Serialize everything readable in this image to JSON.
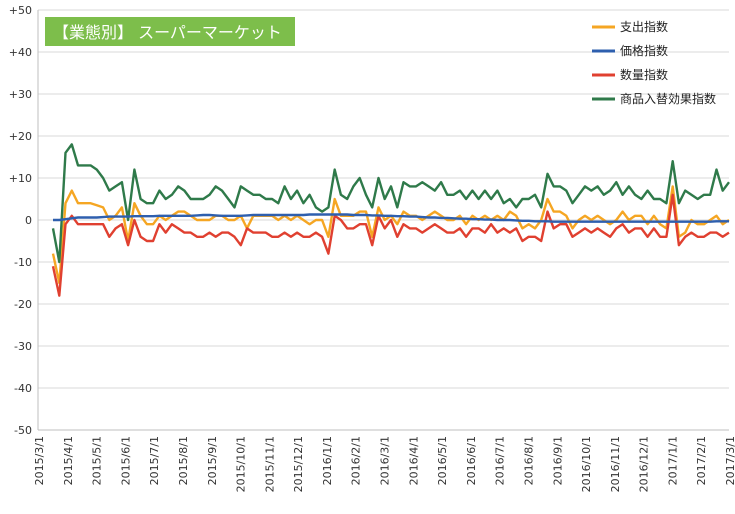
{
  "chart_data": {
    "type": "line",
    "title": "【業態別】 スーパーマーケット",
    "ylim": [
      -50,
      50
    ],
    "y_ticks": [
      "+50",
      "+40",
      "+30",
      "+20",
      "+10",
      "0",
      "-10",
      "-20",
      "-30",
      "-40",
      "-50"
    ],
    "x_tick_labels": [
      "2015/3/1",
      "2015/4/1",
      "2015/5/1",
      "2015/6/1",
      "2015/7/1",
      "2015/8/1",
      "2015/9/1",
      "2015/10/1",
      "2015/11/1",
      "2015/12/1",
      "2016/1/1",
      "2016/2/1",
      "2016/3/1",
      "2016/4/1",
      "2016/5/1",
      "2016/6/1",
      "2016/7/1",
      "2016/8/1",
      "2016/9/1",
      "2016/10/1",
      "2016/11/1",
      "2016/12/1",
      "2017/1/1",
      "2017/2/1",
      "2017/3/1"
    ],
    "x_range_weeks": [
      0,
      108
    ],
    "grid": "horizontal",
    "legend": "top-right",
    "colors": {
      "spend": "#F5A623",
      "price": "#2E5FAE",
      "quantity": "#E04030",
      "mix": "#2F7A4A",
      "title_bg": "#7DBE4B",
      "grid": "#D9D9D9"
    },
    "series": [
      {
        "name": "支出指数",
        "color": "#F5A623",
        "values": [
          -8,
          -15,
          4,
          7,
          4,
          4,
          4,
          3.5,
          3,
          0,
          1,
          3,
          -5,
          4,
          1,
          -1,
          -1,
          1,
          0,
          1,
          2,
          2,
          1,
          0,
          0,
          0,
          1,
          1,
          0,
          0,
          1,
          -2,
          1,
          1,
          1,
          1,
          0,
          1,
          0,
          1,
          0,
          -1,
          0,
          0,
          -4,
          5,
          1,
          1,
          1,
          2,
          2,
          -4,
          3,
          0,
          1,
          -1,
          2,
          1,
          1,
          0,
          1,
          2,
          1,
          0,
          0,
          1,
          -1,
          1,
          0,
          1,
          0,
          1,
          0,
          2,
          1,
          -2,
          -1,
          -2,
          0,
          5,
          2,
          2,
          1,
          -2,
          0,
          1,
          0,
          1,
          0,
          -1,
          0,
          2,
          0,
          1,
          1,
          -1,
          1,
          -1,
          -2,
          8,
          -4,
          -3,
          0,
          -1,
          -1,
          0,
          1,
          -1,
          0
        ]
      },
      {
        "name": "価格指数",
        "color": "#2E5FAE",
        "values": [
          0,
          0,
          0.2,
          0.4,
          0.6,
          0.6,
          0.6,
          0.6,
          0.7,
          0.8,
          0.8,
          0.8,
          0.8,
          0.9,
          0.9,
          0.9,
          0.9,
          1,
          1,
          1,
          1,
          1,
          1,
          1.1,
          1.2,
          1.2,
          1.1,
          1,
          1,
          1,
          1,
          1.1,
          1.2,
          1.2,
          1.2,
          1.2,
          1.2,
          1.2,
          1.2,
          1.2,
          1.2,
          1.3,
          1.3,
          1.3,
          1.3,
          1.3,
          1.3,
          1.3,
          1.2,
          1.2,
          1.2,
          1.1,
          1.1,
          1,
          1,
          0.9,
          0.9,
          0.8,
          0.8,
          0.7,
          0.6,
          0.6,
          0.5,
          0.5,
          0.4,
          0.3,
          0.3,
          0.2,
          0.2,
          0.1,
          0.1,
          0,
          0,
          0,
          -0.1,
          -0.2,
          -0.2,
          -0.3,
          -0.3,
          -0.3,
          -0.4,
          -0.4,
          -0.4,
          -0.4,
          -0.4,
          -0.4,
          -0.4,
          -0.4,
          -0.4,
          -0.4,
          -0.4,
          -0.4,
          -0.4,
          -0.4,
          -0.4,
          -0.4,
          -0.4,
          -0.4,
          -0.4,
          -0.4,
          -0.4,
          -0.4,
          -0.4,
          -0.4,
          -0.4,
          -0.4,
          -0.3,
          -0.3,
          -0.3
        ]
      },
      {
        "name": "数量指数",
        "color": "#E04030",
        "values": [
          -11,
          -18,
          -1,
          1,
          -1,
          -1,
          -1,
          -1,
          -1,
          -4,
          -2,
          -1,
          -6,
          0,
          -4,
          -5,
          -5,
          -1,
          -3,
          -1,
          -2,
          -3,
          -3,
          -4,
          -4,
          -3,
          -4,
          -3,
          -3,
          -4,
          -6,
          -2,
          -3,
          -3,
          -3,
          -4,
          -4,
          -3,
          -4,
          -3,
          -4,
          -4,
          -3,
          -4,
          -8,
          1,
          0,
          -2,
          -2,
          -1,
          -1,
          -6,
          1,
          -2,
          0,
          -4,
          -1,
          -2,
          -2,
          -3,
          -2,
          -1,
          -2,
          -3,
          -3,
          -2,
          -4,
          -2,
          -2,
          -3,
          -1,
          -3,
          -2,
          -3,
          -2,
          -5,
          -4,
          -4,
          -5,
          2,
          -2,
          -1,
          -1,
          -4,
          -3,
          -2,
          -3,
          -2,
          -3,
          -4,
          -2,
          -1,
          -3,
          -2,
          -2,
          -4,
          -2,
          -4,
          -4,
          6,
          -6,
          -4,
          -3,
          -4,
          -4,
          -3,
          -3,
          -4,
          -3
        ]
      },
      {
        "name": "商品入替効果指数",
        "color": "#2F7A4A",
        "values": [
          -2,
          -10,
          16,
          18,
          13,
          13,
          13,
          12,
          10,
          7,
          8,
          9,
          0,
          12,
          5,
          4,
          4,
          7,
          5,
          6,
          8,
          7,
          5,
          5,
          5,
          6,
          8,
          7,
          5,
          3,
          8,
          7,
          6,
          6,
          5,
          5,
          4,
          8,
          5,
          7,
          4,
          6,
          3,
          2,
          3,
          12,
          6,
          5,
          8,
          10,
          6,
          3,
          10,
          5,
          8,
          3,
          9,
          8,
          8,
          9,
          8,
          7,
          9,
          6,
          6,
          7,
          5,
          7,
          5,
          7,
          5,
          7,
          4,
          5,
          3,
          5,
          5,
          6,
          3,
          11,
          8,
          8,
          7,
          4,
          6,
          8,
          7,
          8,
          6,
          7,
          9,
          6,
          8,
          6,
          5,
          7,
          5,
          5,
          4,
          14,
          4,
          7,
          6,
          5,
          6,
          6,
          12,
          7,
          9
        ]
      }
    ]
  }
}
